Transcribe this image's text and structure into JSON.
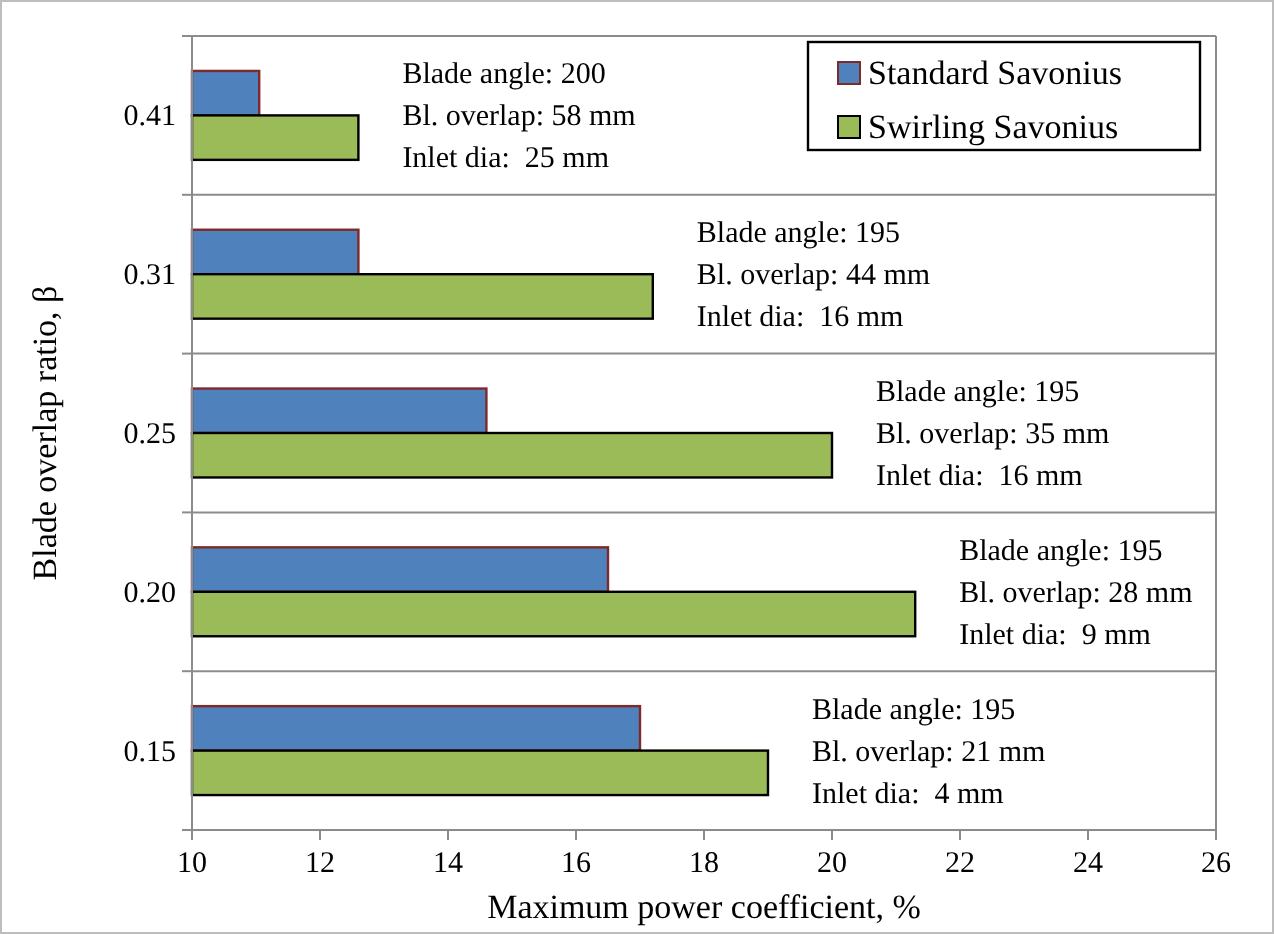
{
  "chart_data": {
    "type": "bar",
    "orientation": "horizontal",
    "xlabel": "Maximum power coefficient, %",
    "ylabel": "Blade overlap ratio, β",
    "categories": [
      "0.41",
      "0.31",
      "0.25",
      "0.20",
      "0.15"
    ],
    "series": [
      {
        "name": "Standard Savonius",
        "color": "#4f81bd",
        "values": [
          11.05,
          12.6,
          14.6,
          16.5,
          17.0
        ]
      },
      {
        "name": "Swirling Savonius",
        "color": "#9bbb59",
        "values": [
          12.6,
          17.2,
          20.0,
          21.3,
          19.0
        ]
      }
    ],
    "xlim": [
      10,
      26
    ],
    "xticks": [
      10,
      12,
      14,
      16,
      18,
      20,
      22,
      24,
      26
    ],
    "grid": "y",
    "legend": "top right",
    "annotations": [
      "Blade angle: 200\nBl. overlap: 58 mm\nInlet dia:  25 mm",
      "Blade angle: 195\nBl. overlap: 44 mm\nInlet dia:  16 mm",
      "Blade angle: 195\nBl. overlap: 35 mm\nInlet dia:  16 mm",
      "Blade angle: 195\nBl. overlap: 28 mm\nInlet dia:  9 mm",
      "Blade angle: 195\nBl. overlap: 21 mm\nInlet dia:  4 mm"
    ]
  }
}
